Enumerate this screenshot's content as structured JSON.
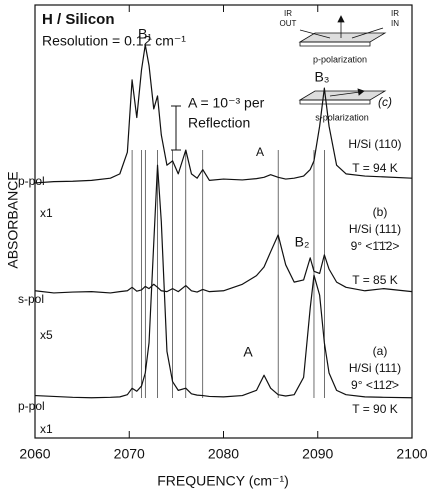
{
  "chart_data": {
    "type": "line",
    "xlabel": "FREQUENCY (cm⁻¹)",
    "ylabel": "ABSORBANCE",
    "xlim": [
      2060,
      2100
    ],
    "xticks": [
      2060,
      2070,
      2080,
      2090,
      2100
    ],
    "ylim": [
      0,
      100
    ],
    "x": [
      2060,
      2062,
      2064,
      2066,
      2068,
      2069,
      2069.8,
      2070.3,
      2070.8,
      2071.3,
      2071.7,
      2072.1,
      2072.6,
      2073,
      2073.4,
      2074,
      2074.6,
      2075.2,
      2076,
      2076.6,
      2077.2,
      2077.8,
      2078.5,
      2080,
      2082,
      2083.5,
      2084.3,
      2085,
      2085.8,
      2086.6,
      2087.5,
      2088.5,
      2089.2,
      2089.6,
      2090.2,
      2090.7,
      2091.2,
      2092,
      2093,
      2095,
      2097,
      2100
    ],
    "series": [
      {
        "color": "#111111",
        "values": [
          58.9,
          59.2,
          59.3,
          59.5,
          60,
          61,
          66,
          82.7,
          74,
          85,
          90.8,
          86,
          76,
          79,
          70,
          63,
          64,
          61,
          66.5,
          61,
          60,
          62,
          59.5,
          59.8,
          59.6,
          59.9,
          60.2,
          60.8,
          60.2,
          59.8,
          60,
          60.5,
          62,
          64,
          72,
          80.8,
          72,
          63,
          61,
          60.5,
          60.3,
          60
        ]
      },
      {
        "color": "#111111",
        "values": [
          34,
          33.5,
          33.7,
          33.8,
          33.5,
          33.8,
          34,
          34.8,
          33.9,
          34.2,
          35,
          34.5,
          35.5,
          34.8,
          34,
          33.8,
          34.5,
          33.8,
          35.2,
          34,
          33.7,
          34.3,
          33.8,
          34,
          35.5,
          37.5,
          39.5,
          43,
          46.9,
          40,
          36,
          36.5,
          41.6,
          38.5,
          38,
          42.3,
          39,
          36,
          34.8,
          34,
          34.5,
          33.8
        ]
      },
      {
        "color": "#111111",
        "values": [
          9.8,
          9.6,
          9.4,
          9.3,
          9.4,
          9.5,
          10,
          11.5,
          10.8,
          12,
          15,
          22,
          45,
          63,
          50,
          20,
          13,
          11,
          11.5,
          10.2,
          9.9,
          9.8,
          9.6,
          9.5,
          9.8,
          11,
          14.5,
          11.5,
          10,
          9.7,
          10,
          14,
          30,
          37.6,
          33,
          22,
          15,
          11,
          10,
          9.5,
          9.4,
          9.3
        ]
      }
    ],
    "guide_lines": [
      2070.3,
      2071.3,
      2071.7,
      2073,
      2074.6,
      2076,
      2077.8,
      2085.8,
      2089.6,
      2090.7
    ],
    "annotations": [
      "H / Silicon",
      "Resolution = 0.12 cm⁻¹",
      "IR",
      "OUT",
      "IR",
      "IN",
      "p-polarization",
      "s-polarization",
      "B₁",
      "B₃",
      "B₂",
      "A",
      "A",
      "A = 10⁻³ per",
      "Reflection",
      "p-pol",
      "x1",
      "s-pol",
      "x5",
      "p-pol",
      "x1",
      "(c)",
      "H/Si (110)",
      "T = 94 K",
      "(b)",
      "H/Si (111)",
      "9° <1̄1̄2>",
      "T = 85 K",
      "(a)",
      "H/Si (111)",
      "9° <112̄>",
      "T = 90 K"
    ]
  }
}
